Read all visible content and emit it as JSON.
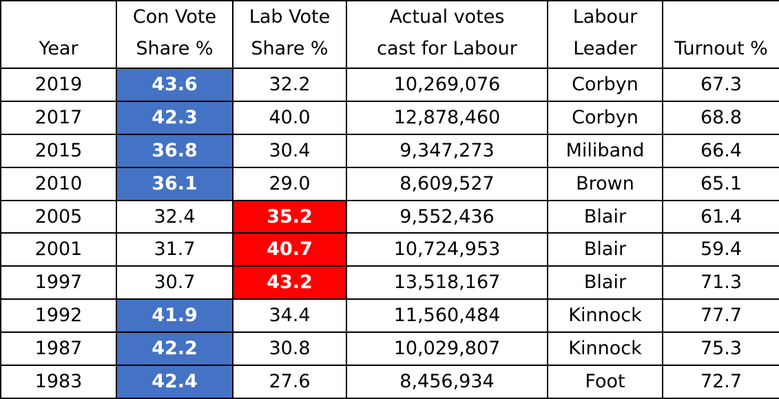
{
  "colors": {
    "conservative_highlight": "#4472c4",
    "labour_highlight": "#ff0000",
    "highlight_text": "#ffffff",
    "text": "#000000",
    "border": "#000000"
  },
  "chart_data": {
    "type": "table",
    "headers": [
      [
        "Year"
      ],
      [
        "Con Vote",
        "Share %"
      ],
      [
        "Lab Vote",
        "Share %"
      ],
      [
        "Actual votes",
        "cast for Labour"
      ],
      [
        "Labour",
        "Leader"
      ],
      [
        "Turnout %"
      ]
    ],
    "rows": [
      {
        "year": "2019",
        "con": "43.6",
        "lab": "32.2",
        "lab_votes": "10,269,076",
        "leader": "Corbyn",
        "turnout": "67.3",
        "winner": "con"
      },
      {
        "year": "2017",
        "con": "42.3",
        "lab": "40.0",
        "lab_votes": "12,878,460",
        "leader": "Corbyn",
        "turnout": "68.8",
        "winner": "con"
      },
      {
        "year": "2015",
        "con": "36.8",
        "lab": "30.4",
        "lab_votes": "9,347,273",
        "leader": "Miliband",
        "turnout": "66.4",
        "winner": "con"
      },
      {
        "year": "2010",
        "con": "36.1",
        "lab": "29.0",
        "lab_votes": "8,609,527",
        "leader": "Brown",
        "turnout": "65.1",
        "winner": "con"
      },
      {
        "year": "2005",
        "con": "32.4",
        "lab": "35.2",
        "lab_votes": "9,552,436",
        "leader": "Blair",
        "turnout": "61.4",
        "winner": "lab"
      },
      {
        "year": "2001",
        "con": "31.7",
        "lab": "40.7",
        "lab_votes": "10,724,953",
        "leader": "Blair",
        "turnout": "59.4",
        "winner": "lab"
      },
      {
        "year": "1997",
        "con": "30.7",
        "lab": "43.2",
        "lab_votes": "13,518,167",
        "leader": "Blair",
        "turnout": "71.3",
        "winner": "lab"
      },
      {
        "year": "1992",
        "con": "41.9",
        "lab": "34.4",
        "lab_votes": "11,560,484",
        "leader": "Kinnock",
        "turnout": "77.7",
        "winner": "con"
      },
      {
        "year": "1987",
        "con": "42.2",
        "lab": "30.8",
        "lab_votes": "10,029,807",
        "leader": "Kinnock",
        "turnout": "75.3",
        "winner": "con"
      },
      {
        "year": "1983",
        "con": "42.4",
        "lab": "27.6",
        "lab_votes": "8,456,934",
        "leader": "Foot",
        "turnout": "72.7",
        "winner": "con"
      }
    ]
  }
}
